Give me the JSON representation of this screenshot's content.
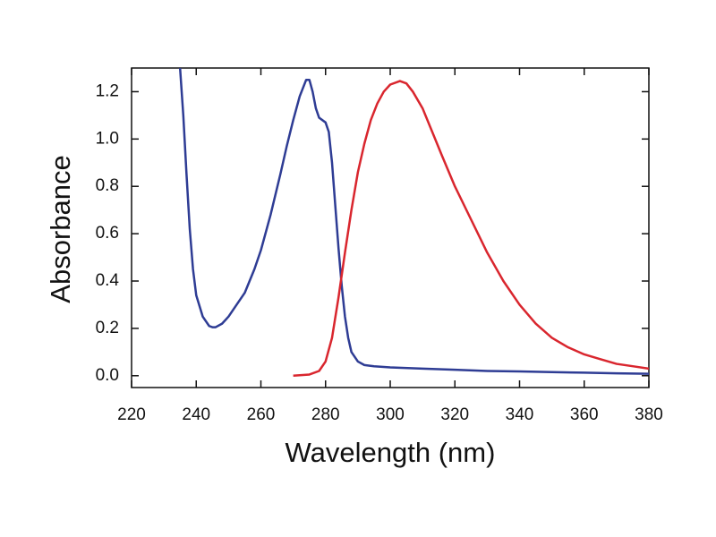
{
  "chart_data": {
    "type": "line",
    "x_label": "Wavelength (nm)",
    "y_label": "Absorbance",
    "xlim": [
      220,
      380
    ],
    "ylim": [
      -0.05,
      1.3
    ],
    "xticks": [
      220,
      240,
      260,
      280,
      300,
      320,
      340,
      360,
      380
    ],
    "yticks": [
      {
        "value": 0,
        "label": "0.0"
      },
      0.2,
      0.4,
      0.6,
      0.8,
      {
        "value": 1,
        "label": "1.0"
      },
      1.2
    ],
    "grid": false,
    "series": [
      {
        "color": "#2e3c94",
        "x": [
          235,
          236,
          237,
          238,
          239,
          240,
          242,
          244,
          245,
          246,
          248,
          250,
          252,
          255,
          258,
          260,
          263,
          266,
          268,
          270,
          272,
          274,
          275,
          276,
          277,
          278,
          280,
          281,
          282,
          283,
          284,
          285,
          286,
          287,
          288,
          290,
          292,
          295,
          300,
          310,
          320,
          330,
          340,
          350,
          360,
          370,
          380
        ],
        "values": [
          1.3,
          1.1,
          0.85,
          0.62,
          0.45,
          0.34,
          0.25,
          0.21,
          0.205,
          0.205,
          0.22,
          0.25,
          0.29,
          0.35,
          0.45,
          0.53,
          0.68,
          0.85,
          0.97,
          1.08,
          1.18,
          1.25,
          1.25,
          1.2,
          1.13,
          1.09,
          1.07,
          1.03,
          0.9,
          0.72,
          0.54,
          0.38,
          0.25,
          0.16,
          0.1,
          0.06,
          0.045,
          0.04,
          0.035,
          0.03,
          0.025,
          0.02,
          0.018,
          0.015,
          0.013,
          0.01,
          0.008
        ]
      },
      {
        "color": "#d9262e",
        "x": [
          270,
          275,
          278,
          280,
          282,
          284,
          286,
          288,
          290,
          292,
          294,
          296,
          298,
          300,
          303,
          305,
          307,
          310,
          313,
          316,
          320,
          325,
          330,
          335,
          340,
          345,
          350,
          355,
          360,
          365,
          370,
          375,
          380
        ],
        "values": [
          0.0,
          0.005,
          0.02,
          0.06,
          0.16,
          0.33,
          0.52,
          0.7,
          0.86,
          0.98,
          1.08,
          1.15,
          1.2,
          1.23,
          1.245,
          1.235,
          1.2,
          1.13,
          1.03,
          0.93,
          0.8,
          0.66,
          0.52,
          0.4,
          0.3,
          0.22,
          0.16,
          0.12,
          0.09,
          0.07,
          0.05,
          0.04,
          0.03
        ]
      }
    ]
  }
}
